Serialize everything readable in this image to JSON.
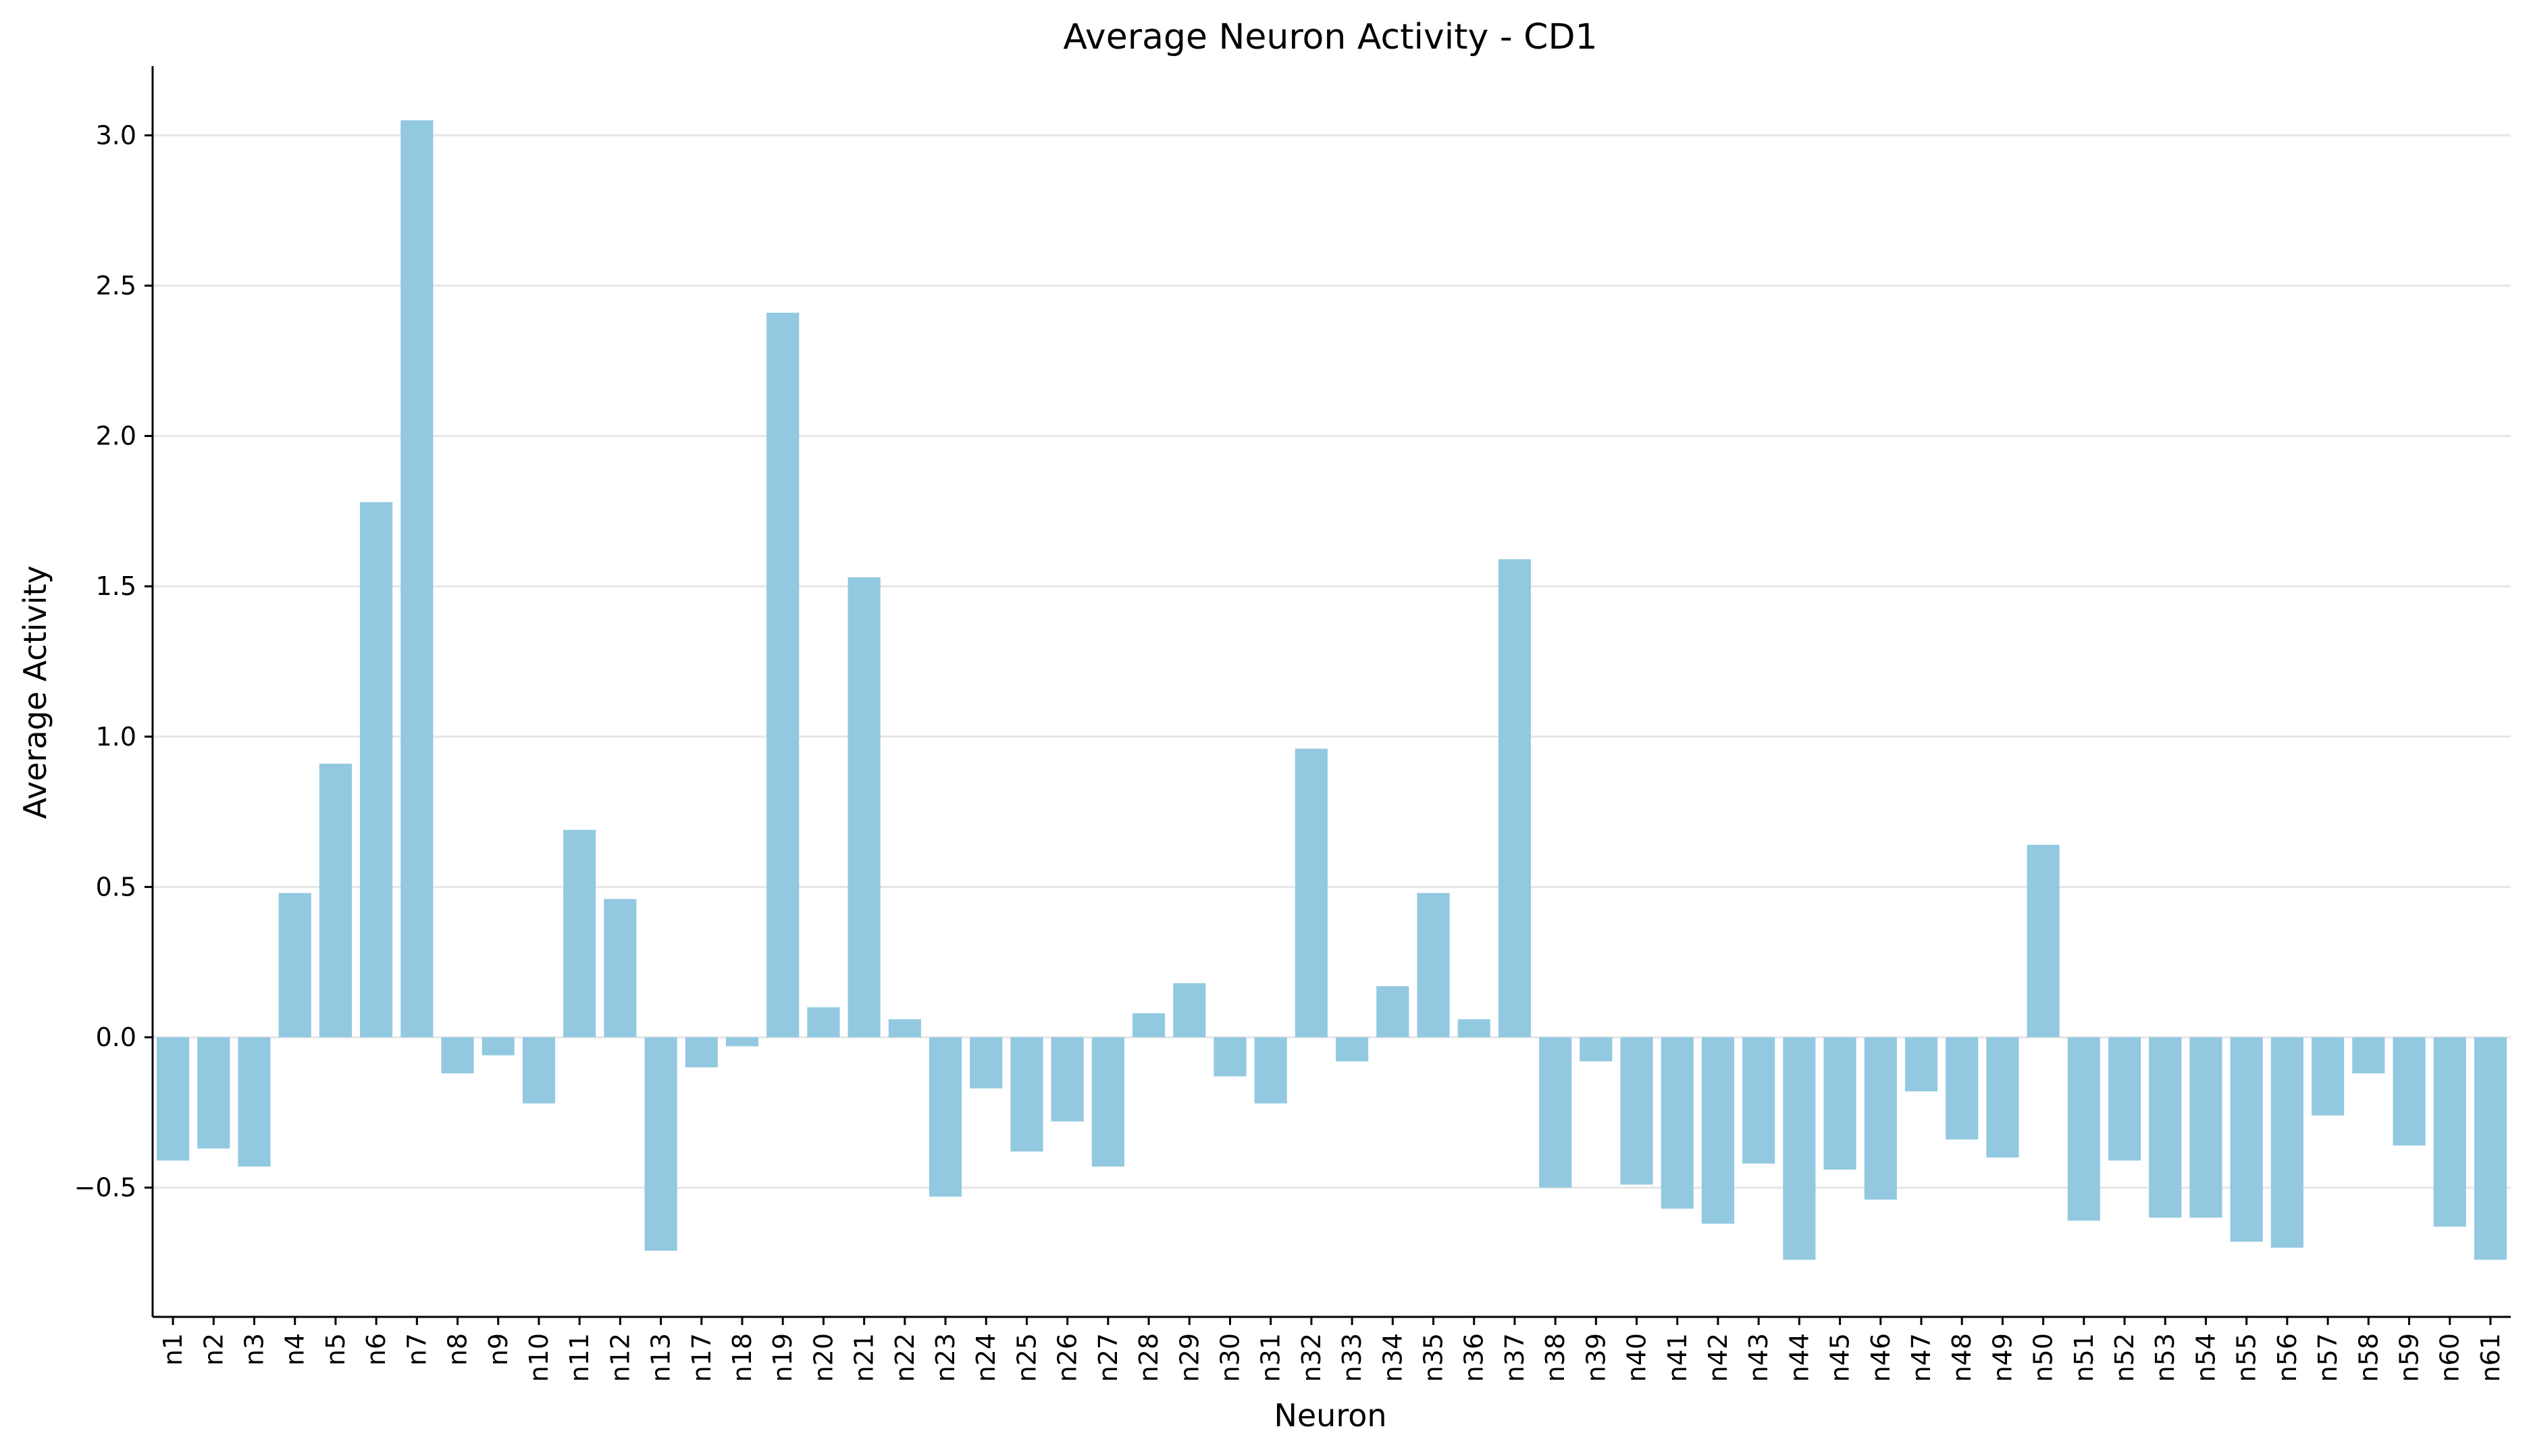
{
  "chart_data": {
    "type": "bar",
    "title": "Average Neuron Activity - CD1",
    "xlabel": "Neuron",
    "ylabel": "Average Activity",
    "ylim": [
      -0.93,
      3.23
    ],
    "yticks": [
      -0.5,
      0.0,
      0.5,
      1.0,
      1.5,
      2.0,
      2.5,
      3.0
    ],
    "ytick_labels": [
      "−0.5",
      "0.0",
      "0.5",
      "1.0",
      "1.5",
      "2.0",
      "2.5",
      "3.0"
    ],
    "grid": "horizontal",
    "bar_color": "#92C9E0",
    "grid_color": "#e6e6e6",
    "categories": [
      "n1",
      "n2",
      "n3",
      "n4",
      "n5",
      "n6",
      "n7",
      "n8",
      "n9",
      "n10",
      "n11",
      "n12",
      "n13",
      "n17",
      "n18",
      "n19",
      "n20",
      "n21",
      "n22",
      "n23",
      "n24",
      "n25",
      "n26",
      "n27",
      "n28",
      "n29",
      "n30",
      "n31",
      "n32",
      "n33",
      "n34",
      "n35",
      "n36",
      "n37",
      "n38",
      "n39",
      "n40",
      "n41",
      "n42",
      "n43",
      "n44",
      "n45",
      "n46",
      "n47",
      "n48",
      "n49",
      "n50",
      "n51",
      "n52",
      "n53",
      "n54",
      "n55",
      "n56",
      "n57",
      "n58",
      "n59",
      "n60",
      "n61"
    ],
    "values": [
      -0.41,
      -0.37,
      -0.43,
      0.48,
      0.91,
      1.78,
      3.05,
      -0.12,
      -0.06,
      -0.22,
      0.69,
      0.46,
      -0.71,
      -0.1,
      -0.03,
      2.41,
      0.1,
      1.53,
      0.06,
      -0.53,
      -0.17,
      -0.38,
      -0.28,
      -0.43,
      0.08,
      0.18,
      -0.13,
      -0.22,
      0.96,
      -0.08,
      0.17,
      0.48,
      0.06,
      1.59,
      -0.5,
      -0.08,
      -0.49,
      -0.57,
      -0.62,
      -0.42,
      -0.74,
      -0.44,
      -0.54,
      -0.18,
      -0.34,
      -0.4,
      0.64,
      -0.61,
      -0.41,
      -0.6,
      -0.6,
      -0.68,
      -0.7,
      -0.26,
      -0.12,
      -0.36,
      -0.63,
      -0.74
    ]
  }
}
